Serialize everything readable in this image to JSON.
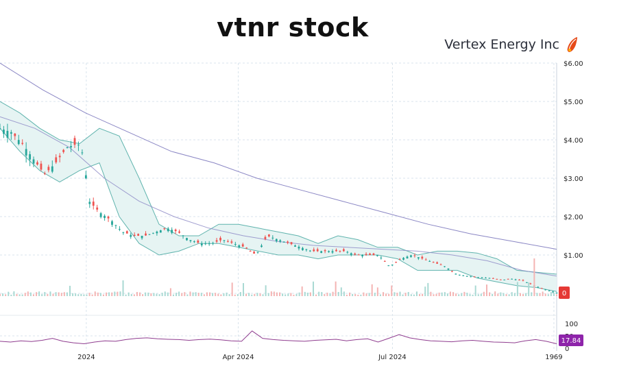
{
  "title": "vtnr stock",
  "company": "Vertex Energy Inc",
  "logo_icon": "flame-feather-icon",
  "colors": {
    "up": "#26a69a",
    "down": "#ef5350",
    "band_fill": "#e6f4f3",
    "band_line": "#5fb3ad",
    "ma_line": "#8a86c4",
    "rsi_line": "#8e3b8e",
    "price_badge": "#e53935",
    "rsi_badge": "#8e24aa",
    "grid": "#d8e3ec"
  },
  "chart_data": [
    {
      "type": "candlestick",
      "title": "",
      "x_ticks": [
        "2024",
        "Apr 2024",
        "Jul 2024",
        "1969"
      ],
      "y_ticks": [
        "$6.00",
        "$5.00",
        "$4.00",
        "$3.00",
        "$2.00",
        "$1.00",
        "0"
      ],
      "ylim": [
        0,
        6
      ],
      "last_price_label": "0",
      "close_series": [
        {
          "x": 0,
          "y": 4.3
        },
        {
          "x": 0.02,
          "y": 4.2
        },
        {
          "x": 0.04,
          "y": 3.9
        },
        {
          "x": 0.06,
          "y": 3.5
        },
        {
          "x": 0.08,
          "y": 3.1
        },
        {
          "x": 0.1,
          "y": 3.4
        },
        {
          "x": 0.12,
          "y": 3.8
        },
        {
          "x": 0.14,
          "y": 3.9
        },
        {
          "x": 0.15,
          "y": 3.6
        },
        {
          "x": 0.16,
          "y": 2.4
        },
        {
          "x": 0.18,
          "y": 2.1
        },
        {
          "x": 0.2,
          "y": 1.9
        },
        {
          "x": 0.22,
          "y": 1.6
        },
        {
          "x": 0.24,
          "y": 1.5
        },
        {
          "x": 0.26,
          "y": 1.5
        },
        {
          "x": 0.28,
          "y": 1.6
        },
        {
          "x": 0.3,
          "y": 1.7
        },
        {
          "x": 0.32,
          "y": 1.6
        },
        {
          "x": 0.34,
          "y": 1.4
        },
        {
          "x": 0.36,
          "y": 1.3
        },
        {
          "x": 0.38,
          "y": 1.3
        },
        {
          "x": 0.4,
          "y": 1.4
        },
        {
          "x": 0.42,
          "y": 1.3
        },
        {
          "x": 0.44,
          "y": 1.2
        },
        {
          "x": 0.46,
          "y": 1.0
        },
        {
          "x": 0.48,
          "y": 1.5
        },
        {
          "x": 0.5,
          "y": 1.4
        },
        {
          "x": 0.52,
          "y": 1.3
        },
        {
          "x": 0.54,
          "y": 1.2
        },
        {
          "x": 0.56,
          "y": 1.1
        },
        {
          "x": 0.58,
          "y": 1.1
        },
        {
          "x": 0.6,
          "y": 1.1
        },
        {
          "x": 0.62,
          "y": 1.1
        },
        {
          "x": 0.64,
          "y": 1.0
        },
        {
          "x": 0.66,
          "y": 1.0
        },
        {
          "x": 0.68,
          "y": 1.0
        },
        {
          "x": 0.7,
          "y": 0.7
        },
        {
          "x": 0.72,
          "y": 0.9
        },
        {
          "x": 0.74,
          "y": 1.0
        },
        {
          "x": 0.76,
          "y": 0.9
        },
        {
          "x": 0.78,
          "y": 0.8
        },
        {
          "x": 0.8,
          "y": 0.7
        },
        {
          "x": 0.82,
          "y": 0.5
        },
        {
          "x": 0.84,
          "y": 0.45
        },
        {
          "x": 0.86,
          "y": 0.42
        },
        {
          "x": 0.88,
          "y": 0.4
        },
        {
          "x": 0.9,
          "y": 0.35
        },
        {
          "x": 0.92,
          "y": 0.38
        },
        {
          "x": 0.94,
          "y": 0.33
        },
        {
          "x": 0.96,
          "y": 0.2
        },
        {
          "x": 0.98,
          "y": 0.1
        },
        {
          "x": 1.0,
          "y": 0.02
        }
      ],
      "upper_band": [
        5.0,
        4.7,
        4.3,
        4.0,
        3.9,
        4.3,
        4.1,
        3.0,
        1.8,
        1.5,
        1.5,
        1.8,
        1.8,
        1.7,
        1.6,
        1.5,
        1.3,
        1.5,
        1.4,
        1.2,
        1.2,
        1.0,
        1.1,
        1.1,
        1.05,
        0.9,
        0.6,
        0.55,
        0.5
      ],
      "lower_band": [
        4.3,
        3.7,
        3.2,
        2.9,
        3.2,
        3.4,
        2.0,
        1.3,
        1.0,
        1.1,
        1.3,
        1.3,
        1.2,
        1.1,
        1.0,
        1.0,
        0.9,
        1.0,
        1.0,
        1.0,
        0.9,
        0.6,
        0.6,
        0.6,
        0.4,
        0.3,
        0.2,
        0.15,
        0.05
      ],
      "sma_200": [
        6.0,
        5.3,
        4.7,
        4.2,
        3.7,
        3.4,
        3.0,
        2.7,
        2.4,
        2.1,
        1.8,
        1.55,
        1.35,
        1.15
      ],
      "sma_50": [
        4.6,
        4.3,
        3.8,
        3.0,
        2.4,
        2.0,
        1.7,
        1.5,
        1.35,
        1.25,
        1.2,
        1.15,
        1.1,
        1.0,
        0.85,
        0.6,
        0.45
      ]
    },
    {
      "type": "line",
      "title": "",
      "y_ticks": [
        "100",
        "50",
        "0"
      ],
      "ylim": [
        0,
        100
      ],
      "last_value_label": "17.84",
      "values": [
        28,
        25,
        30,
        27,
        32,
        40,
        28,
        22,
        18,
        25,
        30,
        28,
        35,
        40,
        42,
        38,
        36,
        35,
        32,
        35,
        37,
        34,
        30,
        28,
        70,
        40,
        35,
        32,
        30,
        28,
        32,
        34,
        36,
        30,
        35,
        38,
        25,
        40,
        55,
        42,
        35,
        30,
        28,
        26,
        30,
        32,
        28,
        25,
        24,
        22,
        30,
        35,
        28,
        18
      ]
    }
  ]
}
